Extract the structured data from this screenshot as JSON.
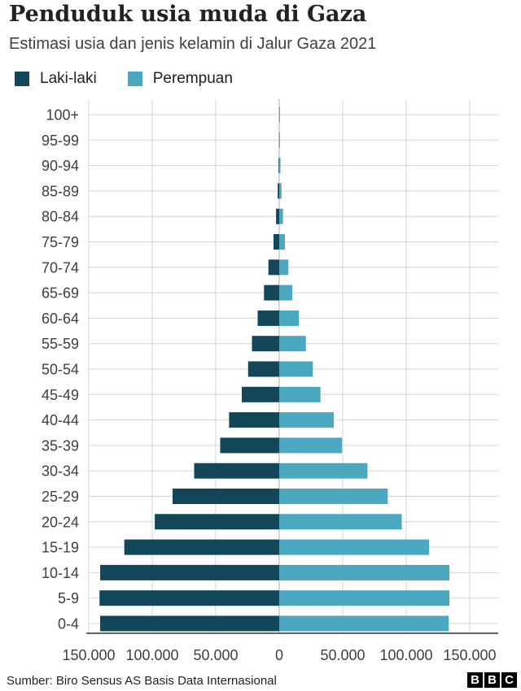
{
  "chart_data": {
    "type": "bar",
    "orientation": "horizontal",
    "layout": "population-pyramid",
    "title": "Penduduk usia muda di Gaza",
    "subtitle": "Estimasi usia dan jenis kelamin di Jalur Gaza 2021",
    "source": "Sumber: Biro Sensus AS Basis Data Internasional",
    "logo": "BBC",
    "categories": [
      "100+",
      "95-99",
      "90-94",
      "85-89",
      "80-84",
      "75-79",
      "70-74",
      "65-69",
      "60-64",
      "55-59",
      "50-54",
      "45-49",
      "40-44",
      "35-39",
      "30-34",
      "25-29",
      "20-24",
      "15-19",
      "10-14",
      "5-9",
      "0-4"
    ],
    "series": [
      {
        "name": "Laki-laki",
        "color": "#12475a",
        "side": "left",
        "values": [
          50,
          150,
          500,
          1200,
          2500,
          4500,
          8500,
          12000,
          17000,
          21500,
          24500,
          29500,
          39500,
          46500,
          67000,
          84000,
          98000,
          122000,
          141000,
          141500,
          141000
        ]
      },
      {
        "name": "Perempuan",
        "color": "#4aa8c0",
        "side": "right",
        "values": [
          100,
          350,
          1000,
          1800,
          3000,
          4500,
          7200,
          10300,
          15500,
          21000,
          26500,
          32500,
          43000,
          49500,
          69500,
          85500,
          96500,
          118000,
          134000,
          134000,
          133500
        ]
      }
    ],
    "x_axis": {
      "range": [
        -170000,
        170000
      ],
      "ticks": [
        -150000,
        -100000,
        -50000,
        0,
        50000,
        100000,
        150000
      ],
      "tick_labels": [
        "150.000",
        "100.000",
        "50.000",
        "0",
        "50.000",
        "100.000",
        "150.000"
      ]
    },
    "legend_position": "top-left",
    "grid": true
  }
}
